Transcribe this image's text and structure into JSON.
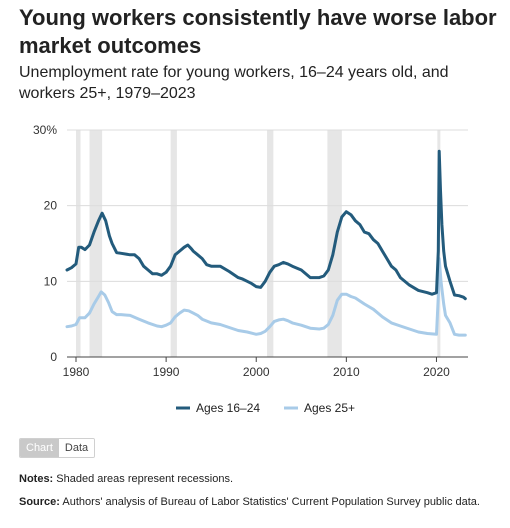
{
  "header": {
    "title": "Young workers consistently have worse labor market outcomes",
    "subtitle": "Unemployment rate for young workers, 16–24 years old, and workers 25+, 1979–2023"
  },
  "toggle": {
    "chart_label": "Chart",
    "data_label": "Data"
  },
  "notes": {
    "notes_label": "Notes:",
    "notes_text": "Shaded areas represent recessions.",
    "source_label": "Source:",
    "source_text": "Authors' analysis of Bureau of Labor Statistics' Current Population Survey public data."
  },
  "colors": {
    "young": "#235b7c",
    "older": "#a8cbe8",
    "recession": "#e6e6e6",
    "grid": "#dcdcdc"
  },
  "chart_data": {
    "type": "line",
    "xlim": [
      1979,
      2023.5
    ],
    "ylim": [
      0,
      30
    ],
    "yticks": [
      0,
      10,
      20,
      30
    ],
    "ytick_labels": [
      "0",
      "10",
      "20",
      "30%"
    ],
    "xticks": [
      1980,
      1990,
      2000,
      2010,
      2020
    ],
    "xtick_labels": [
      "1980",
      "1990",
      "2000",
      "2010",
      "2020"
    ],
    "grid": true,
    "legend": "bottom-center",
    "recessions": [
      [
        1980.0,
        1980.5
      ],
      [
        1981.5,
        1982.9
      ],
      [
        1990.5,
        1991.2
      ],
      [
        2001.2,
        2001.9
      ],
      [
        2007.9,
        2009.5
      ],
      [
        2020.1,
        2020.4
      ]
    ],
    "series": [
      {
        "name": "Ages 16–24",
        "points": [
          [
            1979,
            11.5
          ],
          [
            1979.5,
            11.8
          ],
          [
            1980,
            12.3
          ],
          [
            1980.3,
            14.5
          ],
          [
            1980.6,
            14.5
          ],
          [
            1981,
            14.2
          ],
          [
            1981.5,
            14.8
          ],
          [
            1982,
            16.5
          ],
          [
            1982.5,
            18
          ],
          [
            1982.9,
            19
          ],
          [
            1983.3,
            18
          ],
          [
            1983.7,
            16
          ],
          [
            1984,
            15
          ],
          [
            1984.5,
            13.8
          ],
          [
            1985,
            13.7
          ],
          [
            1986,
            13.5
          ],
          [
            1986.5,
            13.5
          ],
          [
            1987,
            13
          ],
          [
            1987.5,
            12
          ],
          [
            1988,
            11.5
          ],
          [
            1988.5,
            11
          ],
          [
            1989,
            11
          ],
          [
            1989.5,
            10.8
          ],
          [
            1990,
            11.2
          ],
          [
            1990.5,
            12
          ],
          [
            1991,
            13.5
          ],
          [
            1991.5,
            14
          ],
          [
            1992,
            14.5
          ],
          [
            1992.4,
            14.8
          ],
          [
            1992.8,
            14.3
          ],
          [
            1993,
            14
          ],
          [
            1993.5,
            13.5
          ],
          [
            1994,
            13
          ],
          [
            1994.5,
            12.2
          ],
          [
            1995,
            12
          ],
          [
            1996,
            12
          ],
          [
            1997,
            11.3
          ],
          [
            1998,
            10.5
          ],
          [
            1998.5,
            10.3
          ],
          [
            1999,
            10
          ],
          [
            1999.5,
            9.7
          ],
          [
            2000,
            9.3
          ],
          [
            2000.5,
            9.2
          ],
          [
            2001,
            10
          ],
          [
            2001.5,
            11.2
          ],
          [
            2002,
            12
          ],
          [
            2002.5,
            12.2
          ],
          [
            2003,
            12.5
          ],
          [
            2003.5,
            12.3
          ],
          [
            2004,
            12
          ],
          [
            2005,
            11.5
          ],
          [
            2006,
            10.5
          ],
          [
            2007,
            10.5
          ],
          [
            2007.5,
            10.7
          ],
          [
            2008,
            11.5
          ],
          [
            2008.5,
            13.5
          ],
          [
            2009,
            16.5
          ],
          [
            2009.5,
            18.5
          ],
          [
            2010,
            19.2
          ],
          [
            2010.5,
            18.8
          ],
          [
            2011,
            18
          ],
          [
            2011.5,
            17.5
          ],
          [
            2012,
            16.5
          ],
          [
            2012.5,
            16.3
          ],
          [
            2013,
            15.5
          ],
          [
            2013.5,
            15
          ],
          [
            2014,
            14
          ],
          [
            2014.5,
            13
          ],
          [
            2015,
            12
          ],
          [
            2015.5,
            11.5
          ],
          [
            2016,
            10.5
          ],
          [
            2017,
            9.5
          ],
          [
            2018,
            8.8
          ],
          [
            2019,
            8.5
          ],
          [
            2019.5,
            8.3
          ],
          [
            2020,
            8.5
          ],
          [
            2020.2,
            14
          ],
          [
            2020.3,
            27.2
          ],
          [
            2020.45,
            22
          ],
          [
            2020.6,
            17.5
          ],
          [
            2020.8,
            14
          ],
          [
            2021,
            12
          ],
          [
            2021.5,
            10
          ],
          [
            2022,
            8.2
          ],
          [
            2022.5,
            8.1
          ],
          [
            2023,
            7.9
          ],
          [
            2023.2,
            7.7
          ]
        ]
      },
      {
        "name": "Ages 25+",
        "points": [
          [
            1979,
            4
          ],
          [
            1979.5,
            4.1
          ],
          [
            1980,
            4.3
          ],
          [
            1980.4,
            5.2
          ],
          [
            1980.8,
            5.2
          ],
          [
            1981,
            5.2
          ],
          [
            1981.5,
            5.8
          ],
          [
            1982,
            7
          ],
          [
            1982.5,
            8
          ],
          [
            1982.8,
            8.6
          ],
          [
            1983.2,
            8.2
          ],
          [
            1983.6,
            7.2
          ],
          [
            1984,
            6
          ],
          [
            1984.5,
            5.6
          ],
          [
            1985,
            5.6
          ],
          [
            1986,
            5.5
          ],
          [
            1987,
            5
          ],
          [
            1988,
            4.5
          ],
          [
            1989,
            4.1
          ],
          [
            1989.5,
            4
          ],
          [
            1990,
            4.2
          ],
          [
            1990.5,
            4.5
          ],
          [
            1991,
            5.3
          ],
          [
            1991.5,
            5.8
          ],
          [
            1992,
            6.2
          ],
          [
            1992.5,
            6.1
          ],
          [
            1993,
            5.8
          ],
          [
            1993.5,
            5.5
          ],
          [
            1994,
            5
          ],
          [
            1995,
            4.5
          ],
          [
            1996,
            4.3
          ],
          [
            1997,
            3.9
          ],
          [
            1998,
            3.5
          ],
          [
            1999,
            3.3
          ],
          [
            2000,
            3
          ],
          [
            2000.5,
            3.1
          ],
          [
            2001,
            3.4
          ],
          [
            2001.5,
            4
          ],
          [
            2002,
            4.7
          ],
          [
            2002.5,
            4.9
          ],
          [
            2003,
            5
          ],
          [
            2003.5,
            4.8
          ],
          [
            2004,
            4.5
          ],
          [
            2005,
            4.2
          ],
          [
            2006,
            3.8
          ],
          [
            2007,
            3.7
          ],
          [
            2007.5,
            3.8
          ],
          [
            2008,
            4.3
          ],
          [
            2008.5,
            5.5
          ],
          [
            2009,
            7.5
          ],
          [
            2009.5,
            8.3
          ],
          [
            2010,
            8.3
          ],
          [
            2010.5,
            8
          ],
          [
            2011,
            7.8
          ],
          [
            2012,
            7
          ],
          [
            2013,
            6.3
          ],
          [
            2014,
            5.3
          ],
          [
            2015,
            4.5
          ],
          [
            2016,
            4.1
          ],
          [
            2017,
            3.7
          ],
          [
            2018,
            3.3
          ],
          [
            2019,
            3.1
          ],
          [
            2020,
            3
          ],
          [
            2020.2,
            8
          ],
          [
            2020.3,
            13
          ],
          [
            2020.5,
            10
          ],
          [
            2020.8,
            7
          ],
          [
            2021,
            5.5
          ],
          [
            2021.5,
            4.5
          ],
          [
            2022,
            3
          ],
          [
            2022.5,
            2.9
          ],
          [
            2023,
            2.9
          ],
          [
            2023.2,
            2.9
          ]
        ]
      }
    ]
  }
}
